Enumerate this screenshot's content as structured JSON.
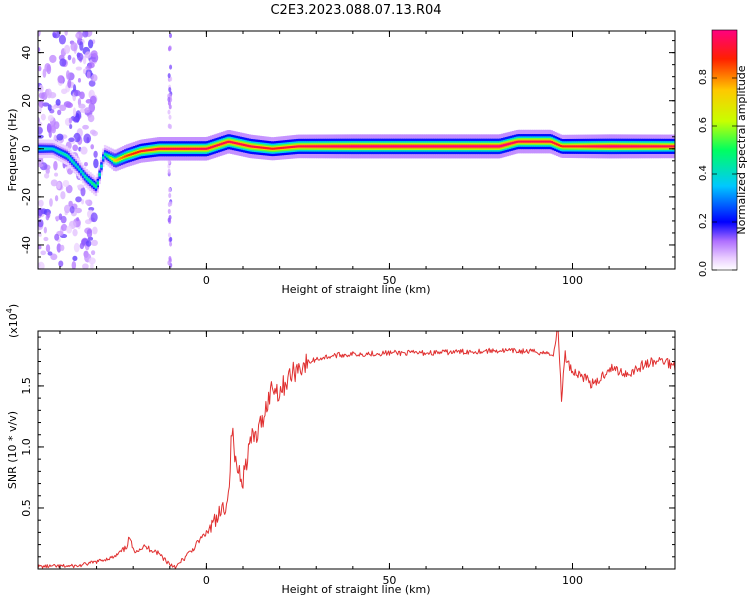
{
  "figure": {
    "title": "C2E3.2023.088.07.13.R04"
  },
  "colorbar": {
    "label": "Normalized spectral amplitude",
    "ticks": [
      "0.0",
      "0.2",
      "0.4",
      "0.6",
      "0.8"
    ],
    "range": [
      0,
      1
    ],
    "colors": [
      "#ffffff",
      "#e9ccff",
      "#7a00ff",
      "#0000ff",
      "#00c8ff",
      "#00ff60",
      "#c8ff00",
      "#ffc800",
      "#ff2000",
      "#ff0080"
    ]
  },
  "chart_data": [
    {
      "type": "heatmap",
      "ylabel": "Frequency (Hz)",
      "xlabel": "Height of straight line (km)",
      "xlim": [
        -46,
        128
      ],
      "ylim": [
        -50,
        49
      ],
      "xticks": [
        "0",
        "50",
        "100"
      ],
      "yticks": [
        "40",
        "20",
        "0",
        "-20",
        "-40"
      ],
      "ridge": [
        {
          "x": -46,
          "f": 0,
          "a": 0.45
        },
        {
          "x": -42,
          "f": 0,
          "a": 0.4
        },
        {
          "x": -38,
          "f": -3,
          "a": 0.45
        },
        {
          "x": -35,
          "f": -8,
          "a": 0.4
        },
        {
          "x": -33,
          "f": -12,
          "a": 0.45
        },
        {
          "x": -30,
          "f": -16,
          "a": 0.5
        },
        {
          "x": -28,
          "f": -2,
          "a": 0.4
        },
        {
          "x": -25,
          "f": -5,
          "a": 0.75
        },
        {
          "x": -22,
          "f": -3,
          "a": 0.85
        },
        {
          "x": -18,
          "f": -1,
          "a": 0.9
        },
        {
          "x": -13,
          "f": 0,
          "a": 0.95
        },
        {
          "x": -5,
          "f": 0,
          "a": 0.95
        },
        {
          "x": 0,
          "f": 0,
          "a": 0.95
        },
        {
          "x": 6,
          "f": 3,
          "a": 0.95
        },
        {
          "x": 12,
          "f": 1,
          "a": 0.95
        },
        {
          "x": 18,
          "f": 0,
          "a": 0.9
        },
        {
          "x": 25,
          "f": 1,
          "a": 0.95
        },
        {
          "x": 40,
          "f": 1,
          "a": 1.0
        },
        {
          "x": 60,
          "f": 1,
          "a": 1.0
        },
        {
          "x": 80,
          "f": 1,
          "a": 1.0
        },
        {
          "x": 85,
          "f": 3,
          "a": 0.95
        },
        {
          "x": 94,
          "f": 3,
          "a": 0.95
        },
        {
          "x": 97,
          "f": 1,
          "a": 0.9
        },
        {
          "x": 110,
          "f": 1,
          "a": 1.0
        },
        {
          "x": 128,
          "f": 1,
          "a": 0.95
        }
      ]
    },
    {
      "type": "line",
      "ylabel": "SNR (10 * v/v)",
      "xlabel": "Height of straight line (km)",
      "yscale_label": "(x10",
      "yscale_exp": "4",
      "xlim": [
        -46,
        128
      ],
      "ylim": [
        0,
        19500
      ],
      "xticks": [
        "0",
        "50",
        "100"
      ],
      "yticks": [
        "0.5",
        "1.0",
        "1.5"
      ],
      "color": "#e03030",
      "x": [
        -46,
        -35,
        -30,
        -25,
        -22,
        -21,
        -20,
        -17,
        -14,
        -12,
        -10,
        -8,
        -6,
        -4,
        -2,
        0,
        2,
        4,
        6,
        7,
        8,
        10,
        12,
        14,
        16,
        18,
        20,
        22,
        25,
        30,
        35,
        40,
        50,
        60,
        70,
        80,
        90,
        95,
        96,
        97,
        98,
        100,
        103,
        106,
        110,
        115,
        120,
        125,
        128
      ],
      "y": [
        200,
        250,
        600,
        1000,
        1700,
        2600,
        1500,
        1800,
        1500,
        1000,
        400,
        200,
        900,
        1500,
        2300,
        3000,
        3600,
        4500,
        6000,
        11500,
        8500,
        7500,
        10500,
        11000,
        13000,
        15000,
        14500,
        15500,
        16500,
        17200,
        17500,
        17600,
        17700,
        17700,
        17800,
        17900,
        17800,
        17600,
        20000,
        14000,
        17500,
        16200,
        15800,
        15000,
        16500,
        16000,
        16800,
        17100,
        16600
      ]
    }
  ]
}
